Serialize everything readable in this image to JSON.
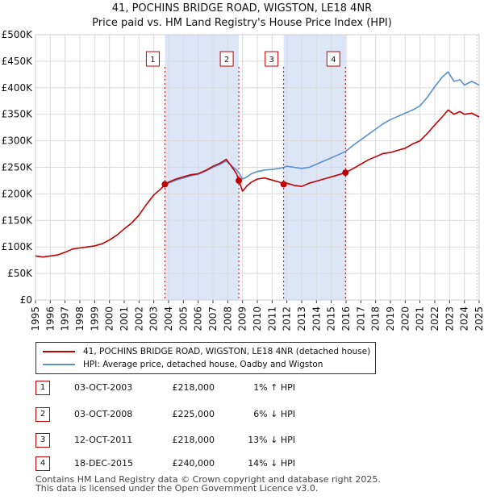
{
  "title_line1": "41, POCHINS BRIDGE ROAD, WIGSTON, LE18 4NR",
  "title_line2": "Price paid vs. HM Land Registry's House Price Index (HPI)",
  "colors": {
    "price_paid": "#c00000",
    "hpi": "#5b8fd0",
    "shade": "#dde6f7",
    "marker": "#c00000"
  },
  "chart_data": {
    "type": "line",
    "title": "41, POCHINS BRIDGE ROAD, WIGSTON, LE18 4NR — Price paid vs. HM Land Registry's House Price Index (HPI)",
    "xlabel": "",
    "ylabel": "",
    "xlim": [
      1995,
      2025
    ],
    "ylim": [
      0,
      500000
    ],
    "y_ticks": [
      {
        "v": 0,
        "label": "£0"
      },
      {
        "v": 50000,
        "label": "£50K"
      },
      {
        "v": 100000,
        "label": "£100K"
      },
      {
        "v": 150000,
        "label": "£150K"
      },
      {
        "v": 200000,
        "label": "£200K"
      },
      {
        "v": 250000,
        "label": "£250K"
      },
      {
        "v": 300000,
        "label": "£300K"
      },
      {
        "v": 350000,
        "label": "£350K"
      },
      {
        "v": 400000,
        "label": "£400K"
      },
      {
        "v": 450000,
        "label": "£450K"
      },
      {
        "v": 500000,
        "label": "£500K"
      }
    ],
    "x_ticks": [
      "1995",
      "1996",
      "1997",
      "1998",
      "1999",
      "2000",
      "2001",
      "2002",
      "2003",
      "2004",
      "2005",
      "2006",
      "2007",
      "2008",
      "2009",
      "2010",
      "2011",
      "2012",
      "2013",
      "2014",
      "2015",
      "2016",
      "2017",
      "2018",
      "2019",
      "2020",
      "2021",
      "2022",
      "2023",
      "2024",
      "2025"
    ],
    "shaded_periods": [
      [
        2003.75,
        2008.75
      ],
      [
        2011.78,
        2015.96
      ]
    ],
    "series": [
      {
        "name": "41, POCHINS BRIDGE ROAD, WIGSTON, LE18 4NR (detached house)",
        "x": [
          1995.0,
          1995.5,
          1996.0,
          1996.5,
          1997.0,
          1997.5,
          1998.0,
          1998.5,
          1999.0,
          1999.5,
          2000.0,
          2000.5,
          2001.0,
          2001.5,
          2002.0,
          2002.5,
          2003.0,
          2003.5,
          2003.75,
          2004.0,
          2004.5,
          2005.0,
          2005.5,
          2006.0,
          2006.5,
          2007.0,
          2007.5,
          2007.9,
          2008.3,
          2008.6,
          2008.75,
          2009.0,
          2009.3,
          2009.6,
          2010.0,
          2010.5,
          2011.0,
          2011.5,
          2011.78,
          2012.0,
          2012.5,
          2013.0,
          2013.5,
          2014.0,
          2014.5,
          2015.0,
          2015.5,
          2015.96,
          2016.5,
          2017.0,
          2017.5,
          2018.0,
          2018.5,
          2019.0,
          2019.5,
          2020.0,
          2020.5,
          2021.0,
          2021.5,
          2022.0,
          2022.5,
          2022.9,
          2023.3,
          2023.7,
          2024.0,
          2024.5,
          2025.0
        ],
        "values": [
          83000,
          81000,
          83000,
          85000,
          90000,
          96000,
          98000,
          100000,
          102000,
          106000,
          113000,
          122000,
          134000,
          145000,
          160000,
          180000,
          198000,
          210000,
          218000,
          222000,
          228000,
          232000,
          236000,
          238000,
          244000,
          252000,
          258000,
          265000,
          250000,
          238000,
          225000,
          205000,
          215000,
          222000,
          228000,
          230000,
          226000,
          222000,
          218000,
          220000,
          216000,
          214000,
          220000,
          224000,
          228000,
          232000,
          236000,
          240000,
          248000,
          256000,
          264000,
          270000,
          276000,
          278000,
          282000,
          286000,
          294000,
          300000,
          314000,
          330000,
          345000,
          358000,
          350000,
          355000,
          350000,
          352000,
          345000
        ]
      },
      {
        "name": "HPI: Average price, detached house, Oadby and Wigston",
        "x": [
          2003.75,
          2004.0,
          2004.5,
          2005.0,
          2005.5,
          2006.0,
          2006.5,
          2007.0,
          2007.5,
          2007.9,
          2008.3,
          2008.6,
          2008.75,
          2009.0,
          2009.3,
          2009.6,
          2010.0,
          2010.5,
          2011.0,
          2011.5,
          2011.78,
          2012.0,
          2012.5,
          2013.0,
          2013.5,
          2014.0,
          2014.5,
          2015.0,
          2015.5,
          2015.96,
          2016.5,
          2017.0,
          2017.5,
          2018.0,
          2018.5,
          2019.0,
          2019.5,
          2020.0,
          2020.5,
          2021.0,
          2021.5,
          2022.0,
          2022.5,
          2022.9,
          2023.3,
          2023.7,
          2024.0,
          2024.5,
          2025.0
        ],
        "values": [
          215000,
          220000,
          226000,
          230000,
          234000,
          237000,
          243000,
          250000,
          256000,
          262000,
          252000,
          245000,
          240000,
          228000,
          232000,
          238000,
          242000,
          245000,
          246000,
          248000,
          250000,
          252000,
          250000,
          248000,
          250000,
          256000,
          262000,
          268000,
          274000,
          280000,
          292000,
          302000,
          312000,
          322000,
          332000,
          340000,
          346000,
          352000,
          358000,
          366000,
          382000,
          402000,
          420000,
          430000,
          412000,
          415000,
          405000,
          412000,
          405000
        ]
      }
    ],
    "transactions": [
      {
        "num": "1",
        "x": 2003.75,
        "price": 218000
      },
      {
        "num": "2",
        "x": 2008.75,
        "price": 225000
      },
      {
        "num": "3",
        "x": 2011.78,
        "price": 218000
      },
      {
        "num": "4",
        "x": 2015.96,
        "price": 240000
      }
    ]
  },
  "legend": {
    "price_label": "41, POCHINS BRIDGE ROAD, WIGSTON, LE18 4NR (detached house)",
    "hpi_label": "HPI: Average price, detached house, Oadby and Wigston"
  },
  "table": [
    {
      "num": "1",
      "date": "03-OCT-2003",
      "price": "£218,000",
      "hpi": "1% ↑ HPI"
    },
    {
      "num": "2",
      "date": "03-OCT-2008",
      "price": "£225,000",
      "hpi": "6% ↓ HPI"
    },
    {
      "num": "3",
      "date": "12-OCT-2011",
      "price": "£218,000",
      "hpi": "13% ↓ HPI"
    },
    {
      "num": "4",
      "date": "18-DEC-2015",
      "price": "£240,000",
      "hpi": "14% ↓ HPI"
    }
  ],
  "footer_line1": "Contains HM Land Registry data © Crown copyright and database right 2025.",
  "footer_line2": "This data is licensed under the Open Government Licence v3.0."
}
